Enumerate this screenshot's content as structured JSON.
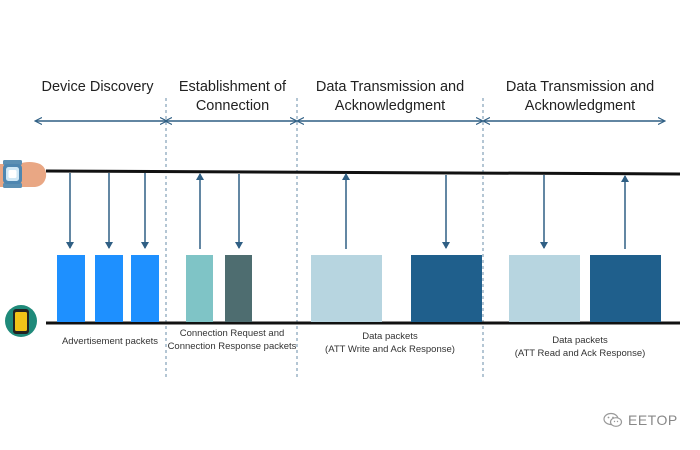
{
  "phases": [
    {
      "title": "Device Discovery"
    },
    {
      "title": "Establishment of Connection"
    },
    {
      "title": "Data Transmission and Acknowledgment"
    },
    {
      "title": "Data Transmission and Acknowledgment"
    }
  ],
  "captions": {
    "advertisement": "Advertisement packets",
    "connection": "Connection Request and Connection Response packets",
    "data1_line1": "Data packets",
    "data1_line2": "(ATT Write and Ack Response)",
    "data2_line1": "Data packets",
    "data2_line2": "(ATT Read and Ack Response)"
  },
  "watermark": "EETOP",
  "icons": {
    "top_device": "smartwatch-icon",
    "bottom_device": "smartphone-icon",
    "watermark": "wechat-icon"
  },
  "colors": {
    "advertisement": "#1e90ff",
    "connection_request": "#7fc4c6",
    "connection_response": "#4e6d70",
    "data_light": "#b7d5e0",
    "data_dark": "#1f5f8c",
    "arrow": "#2f5f84",
    "divider": "#6a8ca8"
  }
}
